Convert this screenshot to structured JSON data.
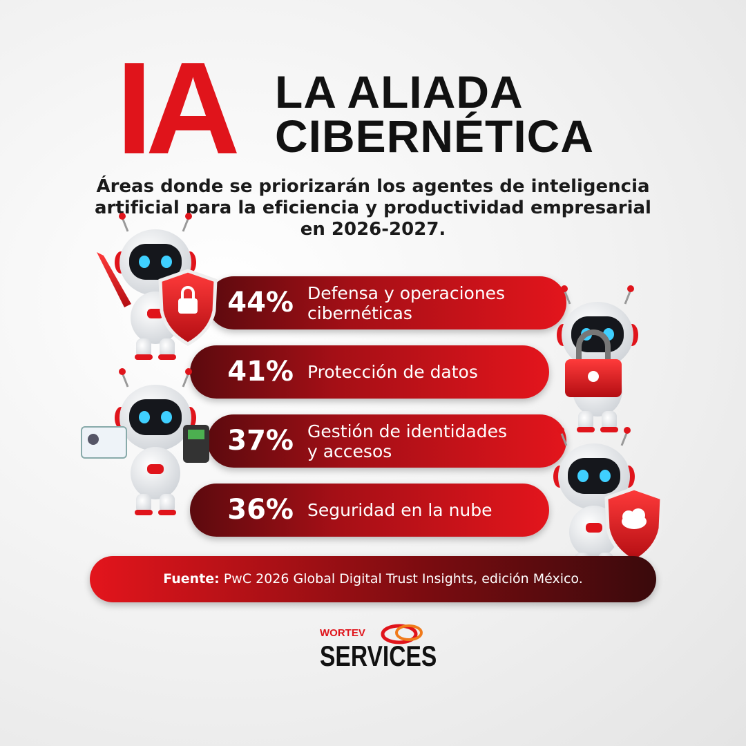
{
  "header": {
    "title_big": "IA",
    "title_line1": "LA ALIADA",
    "title_line2": "CIBERNÉTICA"
  },
  "subtitle": [
    "Áreas donde se priorizarán los agentes de inteligencia",
    "artificial para la eficiencia y productividad empresarial",
    "en 2026-2027."
  ],
  "items": [
    {
      "percent": "44%",
      "label": [
        "Defensa y operaciones",
        "cibernéticas"
      ]
    },
    {
      "percent": "41%",
      "label": [
        "Protección de datos"
      ]
    },
    {
      "percent": "37%",
      "label": [
        "Gestión de identidades",
        "y accesos"
      ]
    },
    {
      "percent": "36%",
      "label": [
        "Seguridad en la nube"
      ]
    }
  ],
  "source": {
    "label": "Fuente:",
    "text": "PwC 2026 Global Digital Trust Insights, edición México."
  },
  "logo": {
    "brand": "WORTEV",
    "name": "SERVICES"
  }
}
